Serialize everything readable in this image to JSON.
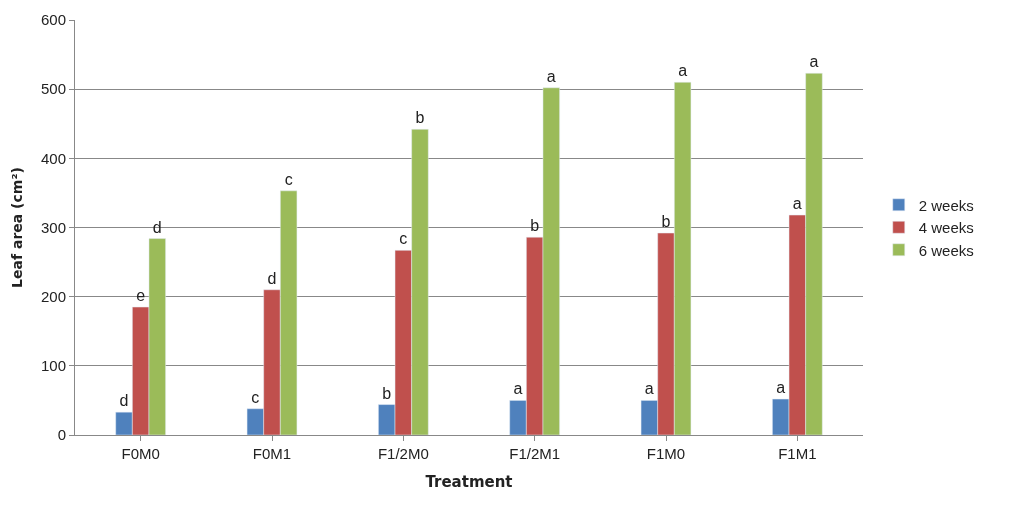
{
  "chart_data": {
    "type": "bar",
    "xlabel": "Treatment",
    "ylabel": "Leaf area (cm²)",
    "categories": [
      "F0M0",
      "F0M1",
      "F1/2M0",
      "F1/2M1",
      "F1M0",
      "F1M1"
    ],
    "series": [
      {
        "name": "2 weeks",
        "color": "#4f81bd",
        "values": [
          33,
          38,
          44,
          50,
          50,
          52
        ],
        "value_labels": [
          "d",
          "c",
          "b",
          "a",
          "a",
          "a"
        ]
      },
      {
        "name": "4 weeks",
        "color": "#c0504d",
        "values": [
          185,
          210,
          267,
          286,
          292,
          318
        ],
        "value_labels": [
          "e",
          "d",
          "c",
          "b",
          "b",
          "a"
        ]
      },
      {
        "name": "6 weeks",
        "color": "#9bbb59",
        "values": [
          284,
          353,
          442,
          502,
          510,
          523
        ],
        "value_labels": [
          "d",
          "c",
          "b",
          "a",
          "a",
          "a"
        ]
      }
    ],
    "ylim": [
      0,
      600
    ],
    "yticks": [
      0,
      100,
      200,
      300,
      400,
      500,
      600
    ],
    "grid": "y",
    "legend": "right"
  }
}
